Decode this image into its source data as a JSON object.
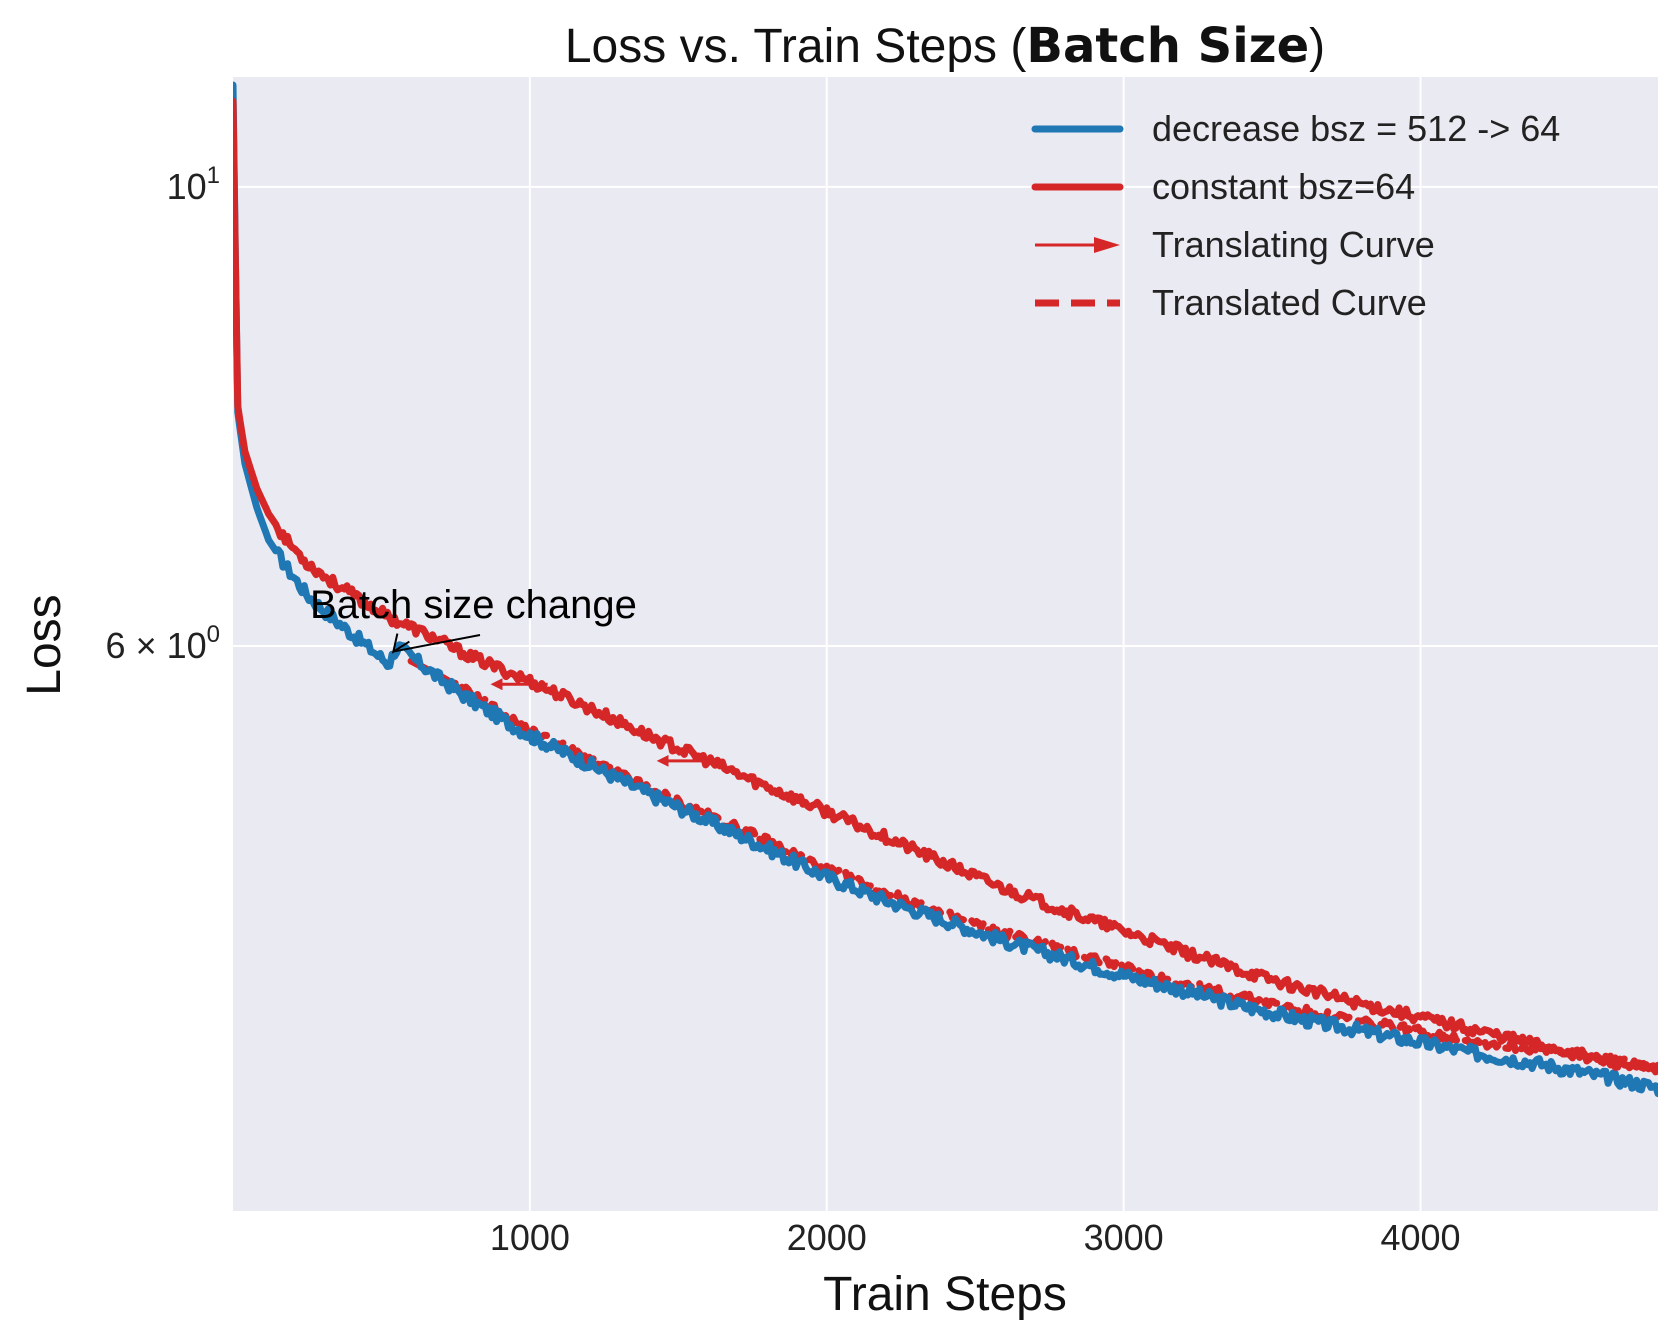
{
  "chart_data": {
    "type": "line",
    "title": {
      "prefix": "Loss vs. Train Steps (",
      "bold": "Batch Size",
      "suffix": ")"
    },
    "xlabel": "Train Steps",
    "ylabel": "Loss",
    "yscale": "log",
    "xlim": [
      0,
      4800
    ],
    "ylim": [
      3.2,
      11.3
    ],
    "grid": true,
    "legend_position": "top-right",
    "x_ticks": [
      {
        "value": 1000,
        "label": "1000"
      },
      {
        "value": 2000,
        "label": "2000"
      },
      {
        "value": 3000,
        "label": "3000"
      },
      {
        "value": 4000,
        "label": "4000"
      }
    ],
    "y_ticks": [
      {
        "value": 10,
        "base": "10",
        "exp": "1",
        "prefix": ""
      },
      {
        "value": 6,
        "base": "10",
        "exp": "0",
        "prefix": "6 × "
      }
    ],
    "colors": {
      "blue": "#1f77b4",
      "red": "#d62728",
      "background": "#eaeaf2",
      "grid": "#ffffff"
    },
    "series": [
      {
        "name": "decrease bsz = 512 -> 64",
        "legend_style": "solid",
        "color": "#1f77b4",
        "noise": 0.007,
        "points": [
          [
            0,
            11.2
          ],
          [
            15,
            7.8
          ],
          [
            40,
            7.35
          ],
          [
            80,
            7.0
          ],
          [
            120,
            6.75
          ],
          [
            180,
            6.55
          ],
          [
            250,
            6.35
          ],
          [
            330,
            6.2
          ],
          [
            420,
            6.05
          ],
          [
            500,
            5.92
          ],
          [
            525,
            5.88
          ],
          [
            545,
            5.97
          ],
          [
            560,
            5.99
          ],
          [
            600,
            5.93
          ],
          [
            700,
            5.78
          ],
          [
            800,
            5.65
          ],
          [
            1000,
            5.43
          ],
          [
            1200,
            5.26
          ],
          [
            1400,
            5.09
          ],
          [
            1600,
            4.94
          ],
          [
            1800,
            4.79
          ],
          [
            2000,
            4.64
          ],
          [
            2200,
            4.52
          ],
          [
            2400,
            4.42
          ],
          [
            2600,
            4.32
          ],
          [
            2800,
            4.24
          ],
          [
            3000,
            4.16
          ],
          [
            3200,
            4.09
          ],
          [
            3400,
            4.02
          ],
          [
            3600,
            3.96
          ],
          [
            3800,
            3.91
          ],
          [
            4000,
            3.86
          ],
          [
            4200,
            3.81
          ],
          [
            4400,
            3.77
          ],
          [
            4600,
            3.72
          ],
          [
            4800,
            3.67
          ]
        ]
      },
      {
        "name": "constant bsz=64",
        "legend_style": "solid",
        "color": "#d62728",
        "noise": 0.006,
        "points": [
          [
            0,
            11.0
          ],
          [
            15,
            7.85
          ],
          [
            40,
            7.45
          ],
          [
            80,
            7.15
          ],
          [
            120,
            6.95
          ],
          [
            180,
            6.75
          ],
          [
            250,
            6.58
          ],
          [
            330,
            6.45
          ],
          [
            420,
            6.33
          ],
          [
            520,
            6.2
          ],
          [
            650,
            6.08
          ],
          [
            800,
            5.93
          ],
          [
            1000,
            5.77
          ],
          [
            1200,
            5.6
          ],
          [
            1400,
            5.43
          ],
          [
            1600,
            5.28
          ],
          [
            1800,
            5.13
          ],
          [
            2000,
            4.99
          ],
          [
            2200,
            4.85
          ],
          [
            2400,
            4.71
          ],
          [
            2600,
            4.58
          ],
          [
            2800,
            4.47
          ],
          [
            3000,
            4.37
          ],
          [
            3200,
            4.27
          ],
          [
            3400,
            4.18
          ],
          [
            3600,
            4.1
          ],
          [
            3800,
            4.03
          ],
          [
            4000,
            3.97
          ],
          [
            4200,
            3.91
          ],
          [
            4400,
            3.85
          ],
          [
            4600,
            3.79
          ],
          [
            4800,
            3.74
          ]
        ]
      },
      {
        "name": "Translated Curve",
        "legend_style": "dashed",
        "color": "#d62728",
        "noise": 0.005,
        "points": [
          [
            600,
            5.9
          ],
          [
            700,
            5.8
          ],
          [
            800,
            5.69
          ],
          [
            1000,
            5.46
          ],
          [
            1200,
            5.29
          ],
          [
            1400,
            5.12
          ],
          [
            1600,
            4.97
          ],
          [
            1800,
            4.83
          ],
          [
            2000,
            4.68
          ],
          [
            2200,
            4.56
          ],
          [
            2400,
            4.45
          ],
          [
            2600,
            4.36
          ],
          [
            2800,
            4.28
          ],
          [
            3000,
            4.2
          ],
          [
            3200,
            4.12
          ],
          [
            3400,
            4.06
          ],
          [
            3600,
            4.0
          ],
          [
            3800,
            3.95
          ],
          [
            4000,
            3.91
          ],
          [
            4200,
            3.86
          ],
          [
            4400,
            3.83
          ],
          [
            4600,
            3.79
          ],
          [
            4800,
            3.76
          ]
        ]
      }
    ],
    "legend": [
      {
        "label": "decrease bsz = 512 -> 64",
        "style": "solid",
        "color": "#1f77b4"
      },
      {
        "label": "constant bsz=64",
        "style": "solid",
        "color": "#d62728"
      },
      {
        "label": "Translating Curve",
        "style": "arrow",
        "color": "#d62728"
      },
      {
        "label": "Translated Curve",
        "style": "dashed",
        "color": "#d62728"
      }
    ],
    "translating_arrows": [
      {
        "from": [
          1060,
          5.75
        ],
        "to": [
          870,
          5.75
        ]
      },
      {
        "from": [
          1620,
          5.28
        ],
        "to": [
          1430,
          5.28
        ]
      }
    ],
    "annotations": [
      {
        "text": "Batch size change",
        "target": [
          520,
          5.91
        ]
      }
    ]
  }
}
